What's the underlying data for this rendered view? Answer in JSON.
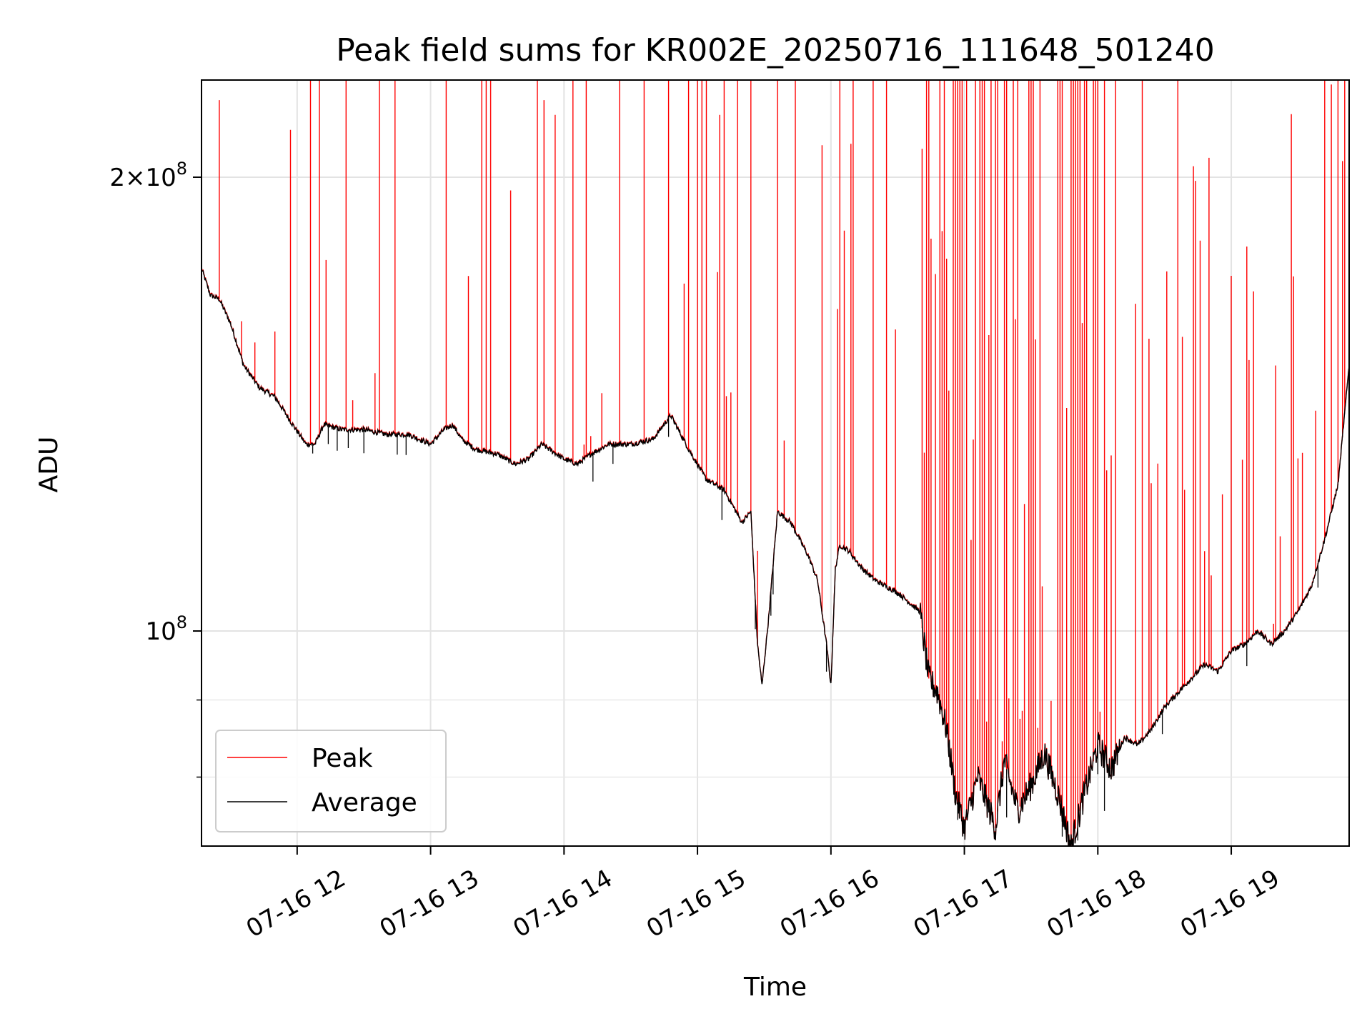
{
  "chart_data": {
    "type": "line",
    "title": "Peak field sums for KR002E_20250716_111648_501240",
    "xlabel": "Time",
    "ylabel": "ADU",
    "yscale": "log",
    "xlim": [
      "2025-07-16 11:17",
      "2025-07-16 19:53"
    ],
    "ylim": [
      72000000,
      232000000
    ],
    "x_ticks": [
      "07-16 12",
      "07-16 13",
      "07-16 14",
      "07-16 15",
      "07-16 16",
      "07-16 17",
      "07-16 18",
      "07-16 19"
    ],
    "y_major_ticks": [
      {
        "value": 100000000,
        "base": "10",
        "exp": "8"
      },
      {
        "value": 200000000,
        "mant": "2",
        "base": "10",
        "exp": "8"
      }
    ],
    "y_minor_ticks": [
      80000000,
      90000000,
      300000000
    ],
    "grid": true,
    "legend": {
      "loc": "lower left"
    },
    "series": [
      {
        "name": "Peak",
        "color": "#ff0000",
        "spikes_to": [
          [
            "11:25",
            225000000
          ],
          [
            "11:50",
            158000000
          ],
          [
            "11:57",
            215000000
          ],
          [
            "12:06",
            240000000
          ],
          [
            "12:10",
            240000000
          ],
          [
            "12:22",
            240000000
          ],
          [
            "12:37",
            240000000
          ],
          [
            "12:44",
            240000000
          ],
          [
            "13:07",
            240000000
          ],
          [
            "13:17",
            172000000
          ],
          [
            "13:27",
            240000000
          ],
          [
            "13:36",
            196000000
          ],
          [
            "13:48",
            240000000
          ],
          [
            "13:51",
            225000000
          ],
          [
            "13:56",
            220000000
          ],
          [
            "14:04",
            240000000
          ],
          [
            "14:10",
            240000000
          ],
          [
            "14:25",
            240000000
          ],
          [
            "14:36",
            236000000
          ],
          [
            "14:47",
            240000000
          ],
          [
            "14:54",
            170000000
          ],
          [
            "15:02",
            240000000
          ],
          [
            "15:10",
            220000000
          ],
          [
            "15:18",
            240000000
          ],
          [
            "15:24",
            240000000
          ],
          [
            "15:36",
            240000000
          ],
          [
            "15:44",
            240000000
          ],
          [
            "15:56",
            210000000
          ],
          [
            "16:04",
            240000000
          ],
          [
            "16:10",
            240000000
          ],
          [
            "16:19",
            240000000
          ],
          [
            "16:25",
            240000000
          ],
          [
            "16:44",
            240000000
          ],
          [
            "16:58",
            240000000
          ],
          [
            "17:12",
            240000000
          ],
          [
            "17:30",
            240000000
          ],
          [
            "17:42",
            240000000
          ],
          [
            "17:55",
            240000000
          ],
          [
            "18:08",
            240000000
          ],
          [
            "18:20",
            240000000
          ],
          [
            "18:36",
            236000000
          ],
          [
            "18:50",
            206000000
          ],
          [
            "19:10",
            168000000
          ],
          [
            "19:20",
            150000000
          ],
          [
            "19:38",
            140000000
          ],
          [
            "19:48",
            240000000
          ],
          [
            "19:50",
            205000000
          ]
        ]
      },
      {
        "name": "Average",
        "color": "#000000",
        "x": [
          "11:17",
          "11:21",
          "11:25",
          "11:30",
          "11:36",
          "11:43",
          "11:50",
          "11:58",
          "12:04",
          "12:08",
          "12:12",
          "12:20",
          "12:30",
          "12:40",
          "12:50",
          "13:00",
          "13:06",
          "13:10",
          "13:14",
          "13:20",
          "13:30",
          "13:38",
          "13:44",
          "13:50",
          "14:00",
          "14:06",
          "14:12",
          "14:20",
          "14:30",
          "14:40",
          "14:48",
          "14:56",
          "15:04",
          "15:12",
          "15:20",
          "15:24",
          "15:27",
          "15:29",
          "15:32",
          "15:36",
          "15:42",
          "15:50",
          "15:54",
          "15:58",
          "16:00",
          "16:02",
          "16:04",
          "16:08",
          "16:14",
          "16:20",
          "16:30",
          "16:40",
          "16:44",
          "16:48",
          "16:52",
          "16:56",
          "17:00",
          "17:06",
          "17:10",
          "17:14",
          "17:18",
          "17:24",
          "17:30",
          "17:36",
          "17:42",
          "17:48",
          "17:54",
          "18:00",
          "18:06",
          "18:12",
          "18:18",
          "18:24",
          "18:30",
          "18:36",
          "18:42",
          "18:48",
          "18:54",
          "19:00",
          "19:06",
          "19:12",
          "19:18",
          "19:24",
          "19:30",
          "19:36",
          "19:42",
          "19:48",
          "19:53"
        ],
        "values": [
          174000000,
          167000000,
          166000000,
          160000000,
          150000000,
          145000000,
          143000000,
          137000000,
          133000000,
          133000000,
          137000000,
          136000000,
          136000000,
          135000000,
          135000000,
          133000000,
          136000000,
          137000000,
          134000000,
          132000000,
          131000000,
          129000000,
          130000000,
          133000000,
          130000000,
          129000000,
          131000000,
          133000000,
          133000000,
          134000000,
          139000000,
          132000000,
          126000000,
          124000000,
          118000000,
          120000000,
          98000000,
          92000000,
          102000000,
          120000000,
          118000000,
          112000000,
          108000000,
          98000000,
          92000000,
          110000000,
          114000000,
          113000000,
          110000000,
          108000000,
          106000000,
          103000000,
          93000000,
          91000000,
          86000000,
          78000000,
          74000000,
          80000000,
          77000000,
          74000000,
          82000000,
          76000000,
          79000000,
          83000000,
          78000000,
          72000000,
          78000000,
          84000000,
          81000000,
          85000000,
          84000000,
          86000000,
          89000000,
          91000000,
          93000000,
          95000000,
          94000000,
          97000000,
          98000000,
          100000000,
          98000000,
          100000000,
          103000000,
          107000000,
          115000000,
          125000000,
          150000000
        ]
      }
    ]
  }
}
